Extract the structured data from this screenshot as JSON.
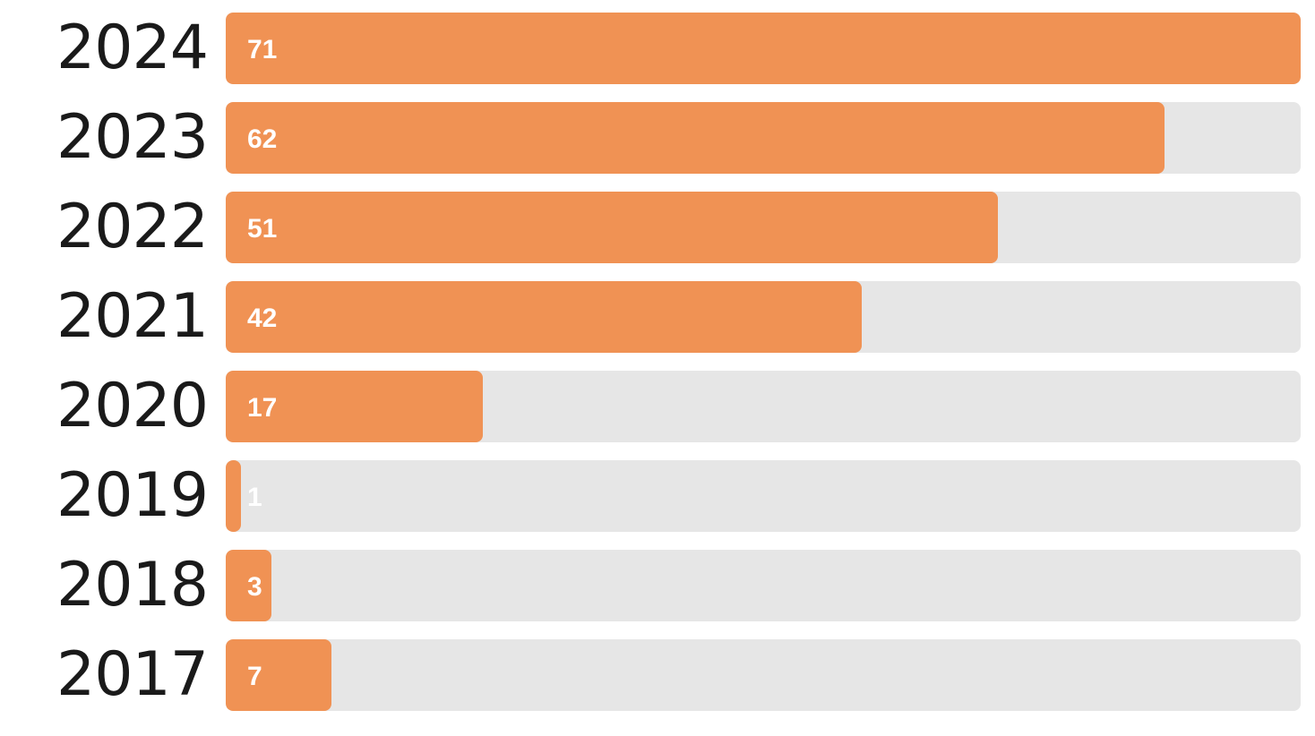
{
  "chart_data": {
    "type": "bar",
    "orientation": "horizontal",
    "categories": [
      "2024",
      "2023",
      "2022",
      "2021",
      "2020",
      "2019",
      "2018",
      "2017"
    ],
    "values": [
      71,
      62,
      51,
      42,
      17,
      1,
      3,
      7
    ],
    "xlim": [
      0,
      71
    ],
    "title": "",
    "xlabel": "",
    "ylabel": "",
    "grid": false,
    "legend": "none",
    "data_labels": true,
    "colors": {
      "bar": "#f09254",
      "track": "#e6e6e6",
      "value_text": "#ffffff",
      "category_text": "#1a1a1a"
    }
  }
}
